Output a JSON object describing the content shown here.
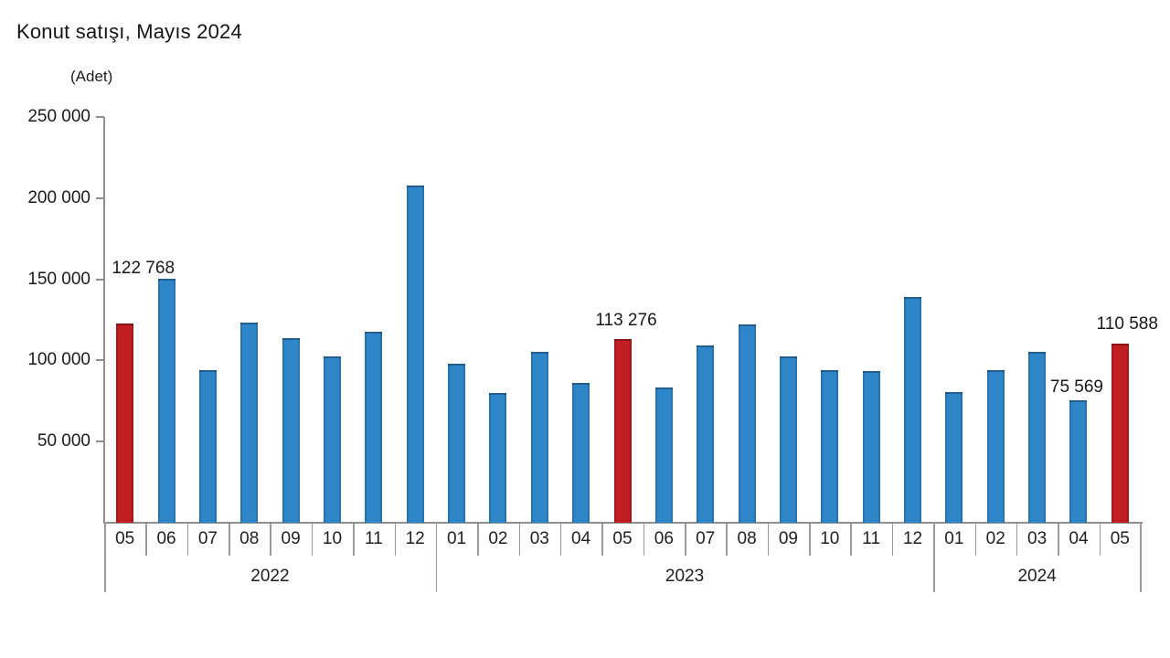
{
  "page": {
    "title": "Konut satışı, Mayıs 2024",
    "unit_label": "(Adet)"
  },
  "chart_data": {
    "type": "bar",
    "title": "Konut satışı, Mayıs 2024",
    "ylabel": "(Adet)",
    "xlabel": "",
    "ylim": [
      0,
      250000
    ],
    "grid": false,
    "legend": "none",
    "colors": {
      "bar": "#2e86c8",
      "highlight": "#c01e21"
    },
    "y_ticks": [
      {
        "value": 250000,
        "label": "250 000"
      },
      {
        "value": 200000,
        "label": "200 000"
      },
      {
        "value": 150000,
        "label": "150 000"
      },
      {
        "value": 100000,
        "label": "100 000"
      },
      {
        "value": 50000,
        "label": "50 000"
      }
    ],
    "bars": [
      {
        "year": "2022",
        "month": "05",
        "value": 122768,
        "highlight": true,
        "label": "122 768"
      },
      {
        "year": "2022",
        "month": "06",
        "value": 150500,
        "highlight": false
      },
      {
        "year": "2022",
        "month": "07",
        "value": 94000,
        "highlight": false
      },
      {
        "year": "2022",
        "month": "08",
        "value": 123500,
        "highlight": false
      },
      {
        "year": "2022",
        "month": "09",
        "value": 113500,
        "highlight": false
      },
      {
        "year": "2022",
        "month": "10",
        "value": 102500,
        "highlight": false
      },
      {
        "year": "2022",
        "month": "11",
        "value": 117500,
        "highlight": false
      },
      {
        "year": "2022",
        "month": "12",
        "value": 208000,
        "highlight": false
      },
      {
        "year": "2023",
        "month": "01",
        "value": 98000,
        "highlight": false
      },
      {
        "year": "2023",
        "month": "02",
        "value": 80000,
        "highlight": false
      },
      {
        "year": "2023",
        "month": "03",
        "value": 105500,
        "highlight": false
      },
      {
        "year": "2023",
        "month": "04",
        "value": 86000,
        "highlight": false
      },
      {
        "year": "2023",
        "month": "05",
        "value": 113276,
        "highlight": true,
        "label": "113 276"
      },
      {
        "year": "2023",
        "month": "06",
        "value": 83500,
        "highlight": false
      },
      {
        "year": "2023",
        "month": "07",
        "value": 109500,
        "highlight": false
      },
      {
        "year": "2023",
        "month": "08",
        "value": 122000,
        "highlight": false
      },
      {
        "year": "2023",
        "month": "09",
        "value": 102500,
        "highlight": false
      },
      {
        "year": "2023",
        "month": "10",
        "value": 94000,
        "highlight": false
      },
      {
        "year": "2023",
        "month": "11",
        "value": 93500,
        "highlight": false
      },
      {
        "year": "2023",
        "month": "12",
        "value": 139000,
        "highlight": false
      },
      {
        "year": "2024",
        "month": "01",
        "value": 80500,
        "highlight": false
      },
      {
        "year": "2024",
        "month": "02",
        "value": 94000,
        "highlight": false
      },
      {
        "year": "2024",
        "month": "03",
        "value": 105500,
        "highlight": false
      },
      {
        "year": "2024",
        "month": "04",
        "value": 75569,
        "highlight": false,
        "label": "75 569"
      },
      {
        "year": "2024",
        "month": "05",
        "value": 110588,
        "highlight": true,
        "label": "110 588"
      }
    ]
  }
}
